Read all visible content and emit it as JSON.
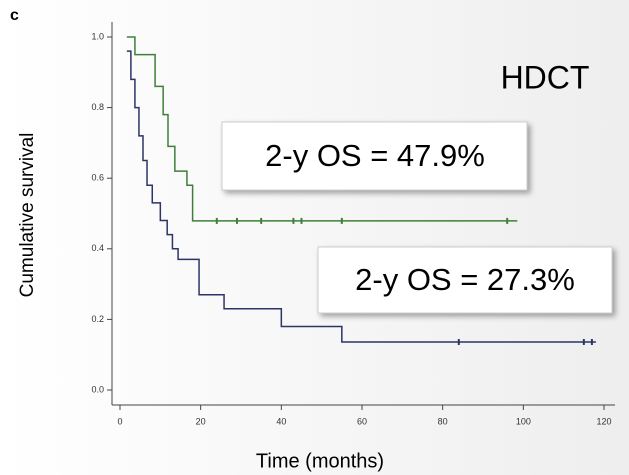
{
  "chart_data": {
    "type": "step",
    "panel_label": "c",
    "xlabel": "Time (months)",
    "ylabel": "Cumulative survival",
    "xlim": [
      0,
      120
    ],
    "ylim": [
      0,
      1
    ],
    "xticks": [
      0,
      20,
      40,
      60,
      80,
      100,
      120
    ],
    "yticks": [
      {
        "value": 0,
        "label": "0.0"
      },
      {
        "value": 0.2,
        "label": "0.2"
      },
      {
        "value": 0.4,
        "label": "0.4"
      },
      {
        "value": 0.6,
        "label": "0.6"
      },
      {
        "value": 0.8,
        "label": "0.8"
      },
      {
        "value": 1,
        "label": "1.0"
      }
    ],
    "series": [
      {
        "color": "#3f7f3a",
        "x": [
          1.7,
          3.7,
          8.7,
          10.7,
          11.9,
          13.6,
          16.6,
          18,
          98.5
        ],
        "values": [
          1,
          0.95,
          0.86,
          0.78,
          0.69,
          0.62,
          0.58,
          0.479,
          0.479
        ],
        "censored": {
          "x": [
            24,
            29,
            35,
            43,
            45,
            55,
            96
          ],
          "values": [
            0.479,
            0.479,
            0.479,
            0.479,
            0.479,
            0.479,
            0.479
          ]
        }
      },
      {
        "color": "#2b3566",
        "x": [
          1.7,
          2.7,
          3.7,
          4.7,
          5.7,
          6.7,
          8,
          10,
          11.7,
          13,
          14.4,
          19.6,
          25.8,
          40,
          55,
          118
        ],
        "values": [
          0.96,
          0.88,
          0.8,
          0.72,
          0.65,
          0.58,
          0.53,
          0.48,
          0.44,
          0.4,
          0.37,
          0.27,
          0.23,
          0.18,
          0.136,
          0.136
        ],
        "censored": {
          "x": [
            84,
            115,
            117
          ],
          "values": [
            0.136,
            0.136,
            0.136
          ]
        }
      }
    ],
    "annotations": [
      {
        "text": "HDCT"
      },
      {
        "text": "2-y OS  = 47.9%"
      },
      {
        "text": "2-y OS = 27.3%"
      }
    ]
  }
}
